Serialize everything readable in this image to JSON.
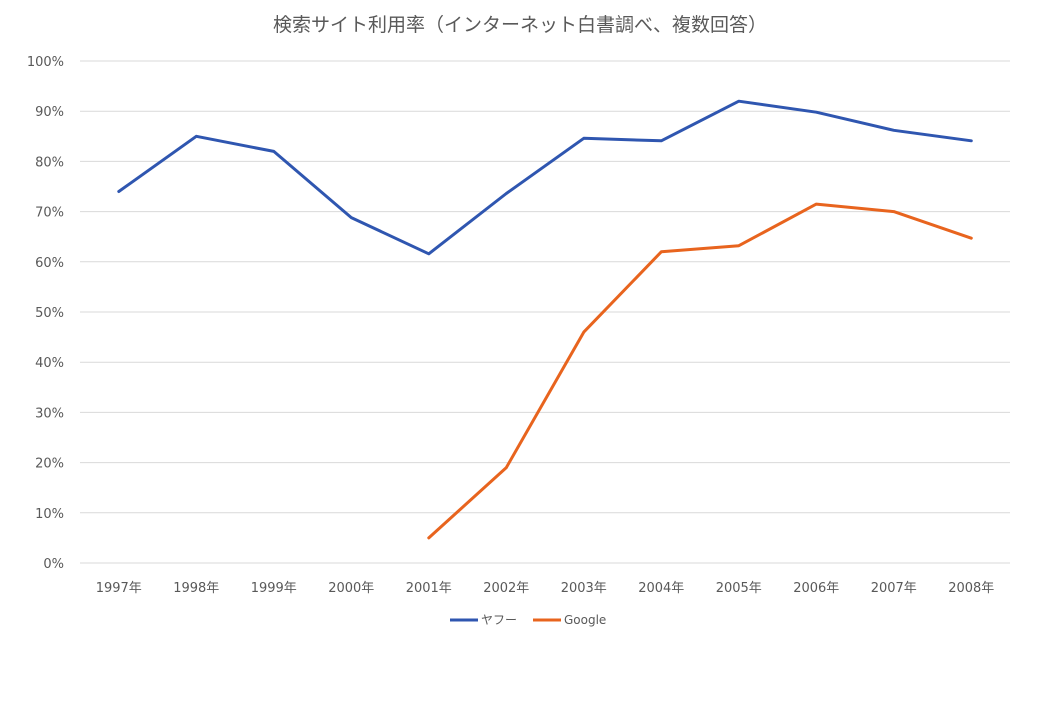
{
  "chart_data": {
    "type": "line",
    "title": "検索サイト利用率（インターネット白書調べ、複数回答）",
    "categories": [
      "1997年",
      "1998年",
      "1999年",
      "2000年",
      "2001年",
      "2002年",
      "2003年",
      "2004年",
      "2005年",
      "2006年",
      "2007年",
      "2008年"
    ],
    "ylim": [
      0,
      100
    ],
    "y_ticks": [
      "0%",
      "10%",
      "20%",
      "30%",
      "40%",
      "50%",
      "60%",
      "70%",
      "80%",
      "90%",
      "100%"
    ],
    "grid": true,
    "legend_position": "bottom",
    "series": [
      {
        "name": "ヤフー",
        "color": "#2f56b0",
        "values": [
          74,
          85,
          82,
          68.8,
          61.6,
          73.6,
          84.6,
          84.1,
          92,
          89.8,
          86.2,
          84.1
        ]
      },
      {
        "name": "Google",
        "color": "#e8641e",
        "values": [
          null,
          null,
          null,
          null,
          5,
          19,
          46,
          62,
          63.2,
          71.5,
          70,
          64.7
        ]
      }
    ]
  }
}
